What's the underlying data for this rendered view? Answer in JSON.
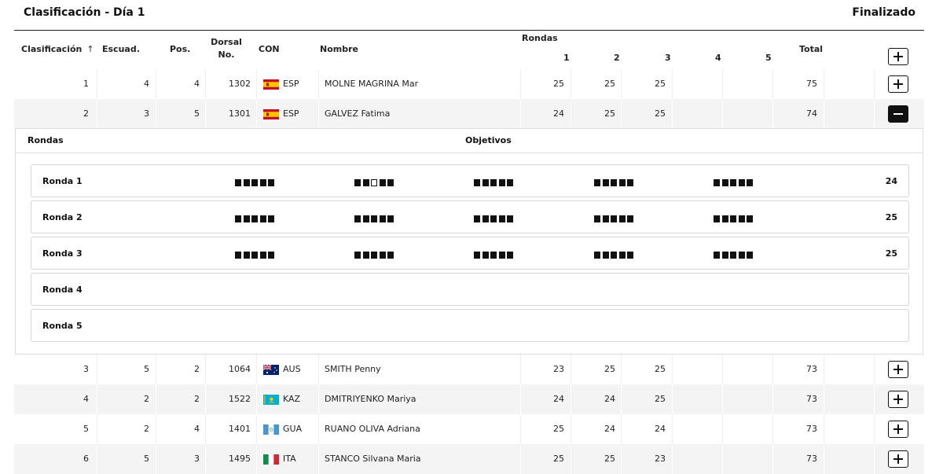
{
  "title": "Clasificación - Día 1",
  "status": "Finalizado",
  "headers": {
    "clasificacion": "Clasificación",
    "sort_icon": "arrow-up-icon",
    "escuad": "Escuad.",
    "pos": "Pos.",
    "dorsal_line1": "Dorsal",
    "dorsal_line2": "No.",
    "con": "CON",
    "nombre": "Nombre",
    "rondas": "Rondas",
    "r1": "1",
    "r2": "2",
    "r3": "3",
    "r4": "4",
    "r5": "5",
    "total": "Total"
  },
  "rows": [
    {
      "rank": "1",
      "squad": "4",
      "pos": "4",
      "bib": "1302",
      "con": "ESP",
      "flag": "es",
      "name": "MOLNE MAGRINA Mar",
      "r1": "25",
      "r2": "25",
      "r3": "25",
      "r4": "",
      "r5": "",
      "total": "75",
      "expanded": false
    },
    {
      "rank": "2",
      "squad": "3",
      "pos": "5",
      "bib": "1301",
      "con": "ESP",
      "flag": "es",
      "name": "GALVEZ Fatima",
      "r1": "24",
      "r2": "25",
      "r3": "25",
      "r4": "",
      "r5": "",
      "total": "74",
      "expanded": true
    },
    {
      "rank": "3",
      "squad": "5",
      "pos": "2",
      "bib": "1064",
      "con": "AUS",
      "flag": "au",
      "name": "SMITH Penny",
      "r1": "23",
      "r2": "25",
      "r3": "25",
      "r4": "",
      "r5": "",
      "total": "73",
      "expanded": false
    },
    {
      "rank": "4",
      "squad": "2",
      "pos": "2",
      "bib": "1522",
      "con": "KAZ",
      "flag": "kz",
      "name": "DMITRIYENKO Mariya",
      "r1": "24",
      "r2": "24",
      "r3": "25",
      "r4": "",
      "r5": "",
      "total": "73",
      "expanded": false
    },
    {
      "rank": "5",
      "squad": "2",
      "pos": "4",
      "bib": "1401",
      "con": "GUA",
      "flag": "gt",
      "name": "RUANO OLIVA Adriana",
      "r1": "25",
      "r2": "24",
      "r3": "24",
      "r4": "",
      "r5": "",
      "total": "73",
      "expanded": false
    },
    {
      "rank": "6",
      "squad": "5",
      "pos": "3",
      "bib": "1495",
      "con": "ITA",
      "flag": "it",
      "name": "STANCO Silvana Maria",
      "r1": "25",
      "r2": "25",
      "r3": "23",
      "r4": "",
      "r5": "",
      "total": "73",
      "expanded": false
    }
  ],
  "detail": {
    "col_rondas": "Rondas",
    "col_objetivos": "Objetivos",
    "rounds": [
      {
        "label": "Ronda 1",
        "total": "24",
        "groups": [
          [
            1,
            1,
            1,
            1,
            1
          ],
          [
            1,
            1,
            0,
            1,
            1
          ],
          [
            1,
            1,
            1,
            1,
            1
          ],
          [
            1,
            1,
            1,
            1,
            1
          ],
          [
            1,
            1,
            1,
            1,
            1
          ]
        ]
      },
      {
        "label": "Ronda 2",
        "total": "25",
        "groups": [
          [
            1,
            1,
            1,
            1,
            1
          ],
          [
            1,
            1,
            1,
            1,
            1
          ],
          [
            1,
            1,
            1,
            1,
            1
          ],
          [
            1,
            1,
            1,
            1,
            1
          ],
          [
            1,
            1,
            1,
            1,
            1
          ]
        ]
      },
      {
        "label": "Ronda 3",
        "total": "25",
        "groups": [
          [
            1,
            1,
            1,
            1,
            1
          ],
          [
            1,
            1,
            1,
            1,
            1
          ],
          [
            1,
            1,
            1,
            1,
            1
          ],
          [
            1,
            1,
            1,
            1,
            1
          ],
          [
            1,
            1,
            1,
            1,
            1
          ]
        ]
      },
      {
        "label": "Ronda 4",
        "total": "",
        "groups": []
      },
      {
        "label": "Ronda 5",
        "total": "",
        "groups": []
      }
    ]
  },
  "colors": {
    "text": "#111111",
    "alt_row": "#f4f4f4",
    "border": "#dddddd"
  }
}
